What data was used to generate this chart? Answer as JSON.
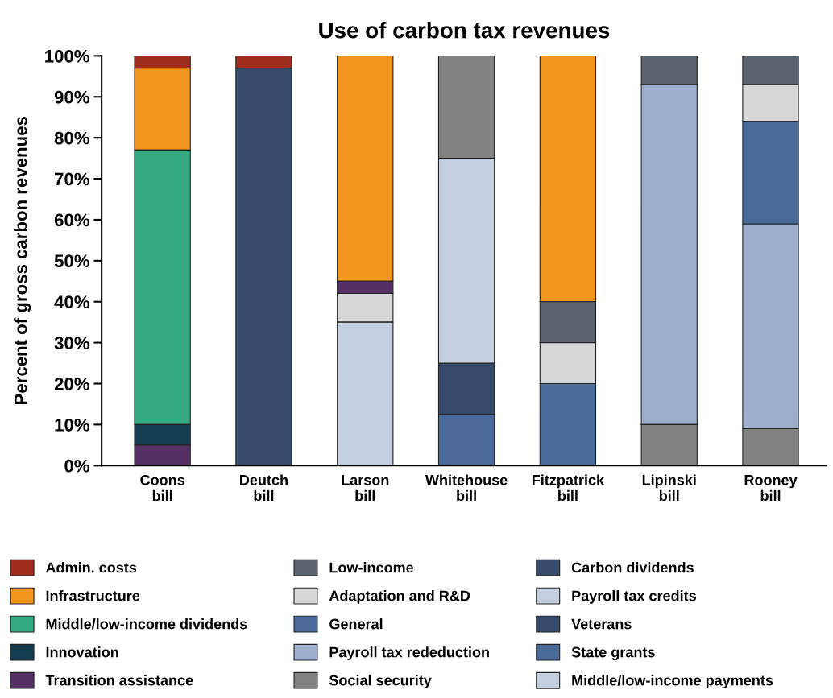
{
  "chart_data": {
    "type": "bar",
    "title": "Use of carbon tax revenues",
    "ylabel": "Percent of gross carbon revenues",
    "categories": [
      "Coons\nbill",
      "Deutch\nbill",
      "Larson\nbill",
      "Whitehouse\nbill",
      "Fitzpatrick\nbill",
      "Lipinski\nbill",
      "Rooney\nbill"
    ],
    "ylim": [
      0,
      100
    ],
    "yticks": [
      {
        "value": 0,
        "label": "0%"
      },
      {
        "value": 10,
        "label": "10%"
      },
      {
        "value": 20,
        "label": "20%"
      },
      {
        "value": 30,
        "label": "30%"
      },
      {
        "value": 40,
        "label": "40%"
      },
      {
        "value": 50,
        "label": "50%"
      },
      {
        "value": 60,
        "label": "60%"
      },
      {
        "value": 70,
        "label": "70%"
      },
      {
        "value": 80,
        "label": "80%"
      },
      {
        "value": 90,
        "label": "90%"
      },
      {
        "value": 100,
        "label": "100%"
      }
    ],
    "grid": false,
    "legend": "bottom",
    "series": [
      {
        "name": "Admin. costs",
        "color": "#a02c1e",
        "values": [
          3,
          3,
          null,
          null,
          null,
          null,
          null
        ],
        "base": [
          97,
          97,
          null,
          null,
          null,
          null,
          null
        ]
      },
      {
        "name": "Infrastructure",
        "color": "#f2961f",
        "values": [
          20,
          null,
          55,
          null,
          60,
          null,
          null
        ],
        "base": [
          77,
          null,
          45,
          null,
          40,
          null,
          null
        ]
      },
      {
        "name": "Middle/low-income dividends",
        "color": "#35a982",
        "values": [
          67,
          null,
          null,
          null,
          null,
          null,
          null
        ],
        "base": [
          10,
          null,
          null,
          null,
          null,
          null,
          null
        ]
      },
      {
        "name": "Innovation",
        "color": "#133d4f",
        "values": [
          5,
          null,
          null,
          null,
          null,
          null,
          null
        ],
        "base": [
          5,
          null,
          null,
          null,
          null,
          null,
          null
        ]
      },
      {
        "name": "Transition assistance",
        "color": "#532f63",
        "values": [
          5,
          null,
          3,
          null,
          null,
          null,
          null
        ],
        "base": [
          0,
          null,
          42,
          null,
          null,
          null,
          null
        ]
      },
      {
        "name": "Low-income",
        "color": "#5a636e",
        "values": [
          null,
          null,
          null,
          null,
          10,
          7,
          7
        ],
        "base": [
          null,
          null,
          null,
          null,
          30,
          93,
          93
        ]
      },
      {
        "name": "Adaptation and R&D",
        "color": "#d6d7d9",
        "values": [
          null,
          null,
          7,
          null,
          10,
          null,
          9
        ],
        "base": [
          null,
          null,
          35,
          null,
          20,
          null,
          84
        ]
      },
      {
        "name": "General",
        "color": "#4b6a9b",
        "values": [
          null,
          null,
          null,
          12.5,
          null,
          null,
          null
        ],
        "base": [
          null,
          null,
          null,
          0,
          null,
          null,
          null
        ]
      },
      {
        "name": "Payroll tax rededuction",
        "color": "#9dafcd",
        "values": [
          null,
          null,
          null,
          null,
          null,
          83,
          50
        ],
        "base": [
          null,
          null,
          null,
          null,
          null,
          10,
          9
        ]
      },
      {
        "name": "Social security",
        "color": "#828282",
        "values": [
          null,
          null,
          null,
          25,
          null,
          10,
          9
        ],
        "base": [
          null,
          null,
          null,
          75,
          null,
          0,
          0
        ]
      },
      {
        "name": "Carbon dividends",
        "color": "#374b6c",
        "values": [
          null,
          97,
          null,
          null,
          null,
          null,
          null
        ],
        "base": [
          null,
          0,
          null,
          null,
          null,
          null,
          null
        ]
      },
      {
        "name": "Payroll tax credits",
        "color": "#c3cee0",
        "values": [
          null,
          null,
          35,
          null,
          null,
          null,
          null
        ],
        "base": [
          null,
          null,
          0,
          null,
          null,
          null,
          null
        ]
      },
      {
        "name": "Veterans",
        "color": "#364a6b",
        "values": [
          null,
          null,
          null,
          12.5,
          null,
          null,
          null
        ],
        "base": [
          null,
          null,
          null,
          12.5,
          null,
          null,
          null
        ]
      },
      {
        "name": "State grants",
        "color": "#4a6a9a",
        "values": [
          null,
          null,
          null,
          null,
          20,
          null,
          25
        ],
        "base": [
          null,
          null,
          null,
          null,
          0,
          null,
          59
        ]
      },
      {
        "name": "Middle/low-income payments",
        "color": "#c4cfe1",
        "values": [
          null,
          null,
          null,
          50,
          null,
          null,
          null
        ],
        "base": [
          null,
          null,
          null,
          25,
          null,
          null,
          null
        ]
      }
    ]
  }
}
